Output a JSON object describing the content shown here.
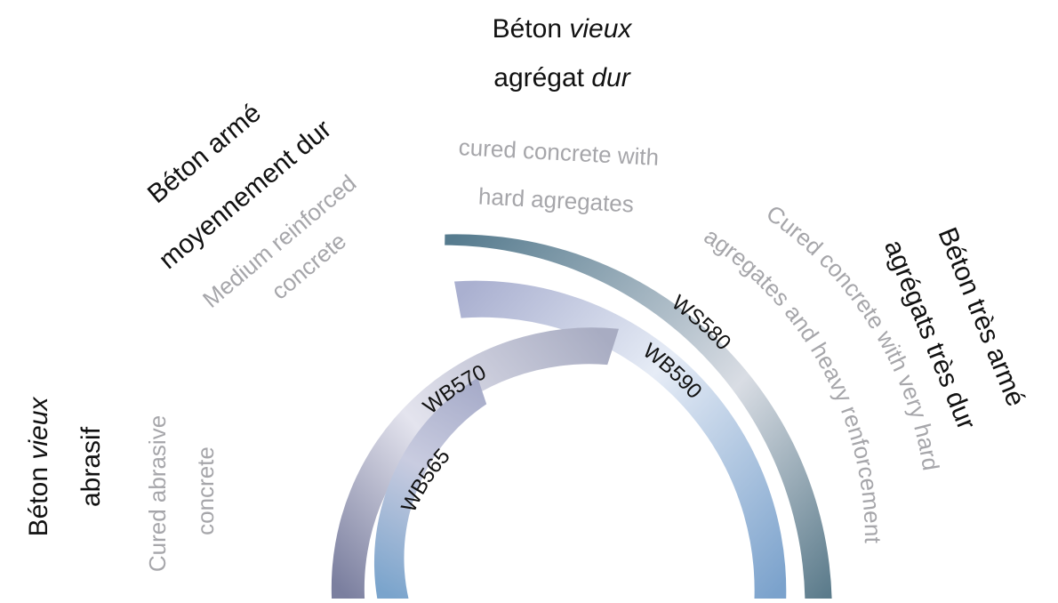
{
  "categories": {
    "old_abrasive": {
      "fr_line1_a": "Béton ",
      "fr_line1_b": "vieux",
      "fr_line2": "abrasif",
      "en_line1": "Cured abrasive",
      "en_line2": "concrete"
    },
    "medium_reinforced": {
      "fr_line1": "Béton armé",
      "fr_line2": "moyennement dur",
      "en_line1": "Medium reinforced",
      "en_line2": "concrete"
    },
    "old_hard": {
      "fr_line1_a": "Béton ",
      "fr_line1_b": "vieux",
      "fr_line2_a": "agrégat ",
      "fr_line2_b": "dur",
      "en_line1": "cured concrete with",
      "en_line2": "hard agregates"
    },
    "very_reinforced": {
      "fr_line1": "Béton très armé",
      "fr_line2": "agrégats très dur",
      "en_line1": "Cured concrete with very hard",
      "en_line2": "agregates and heavy renforcement"
    }
  },
  "products": [
    {
      "label": "WB565",
      "colors": [
        "#7aa4cc",
        "#c9cce0",
        "#a5aac8"
      ]
    },
    {
      "label": "WB570",
      "colors": [
        "#7b7f9f",
        "#e4e4ee",
        "#a8acc2"
      ]
    },
    {
      "label": "WB590",
      "colors": [
        "#aab0d0",
        "#e6ecf6",
        "#7ba2cc"
      ]
    },
    {
      "label": "WS580",
      "colors": [
        "#567b8e",
        "#d9dde4",
        "#5b7b8b"
      ]
    }
  ]
}
